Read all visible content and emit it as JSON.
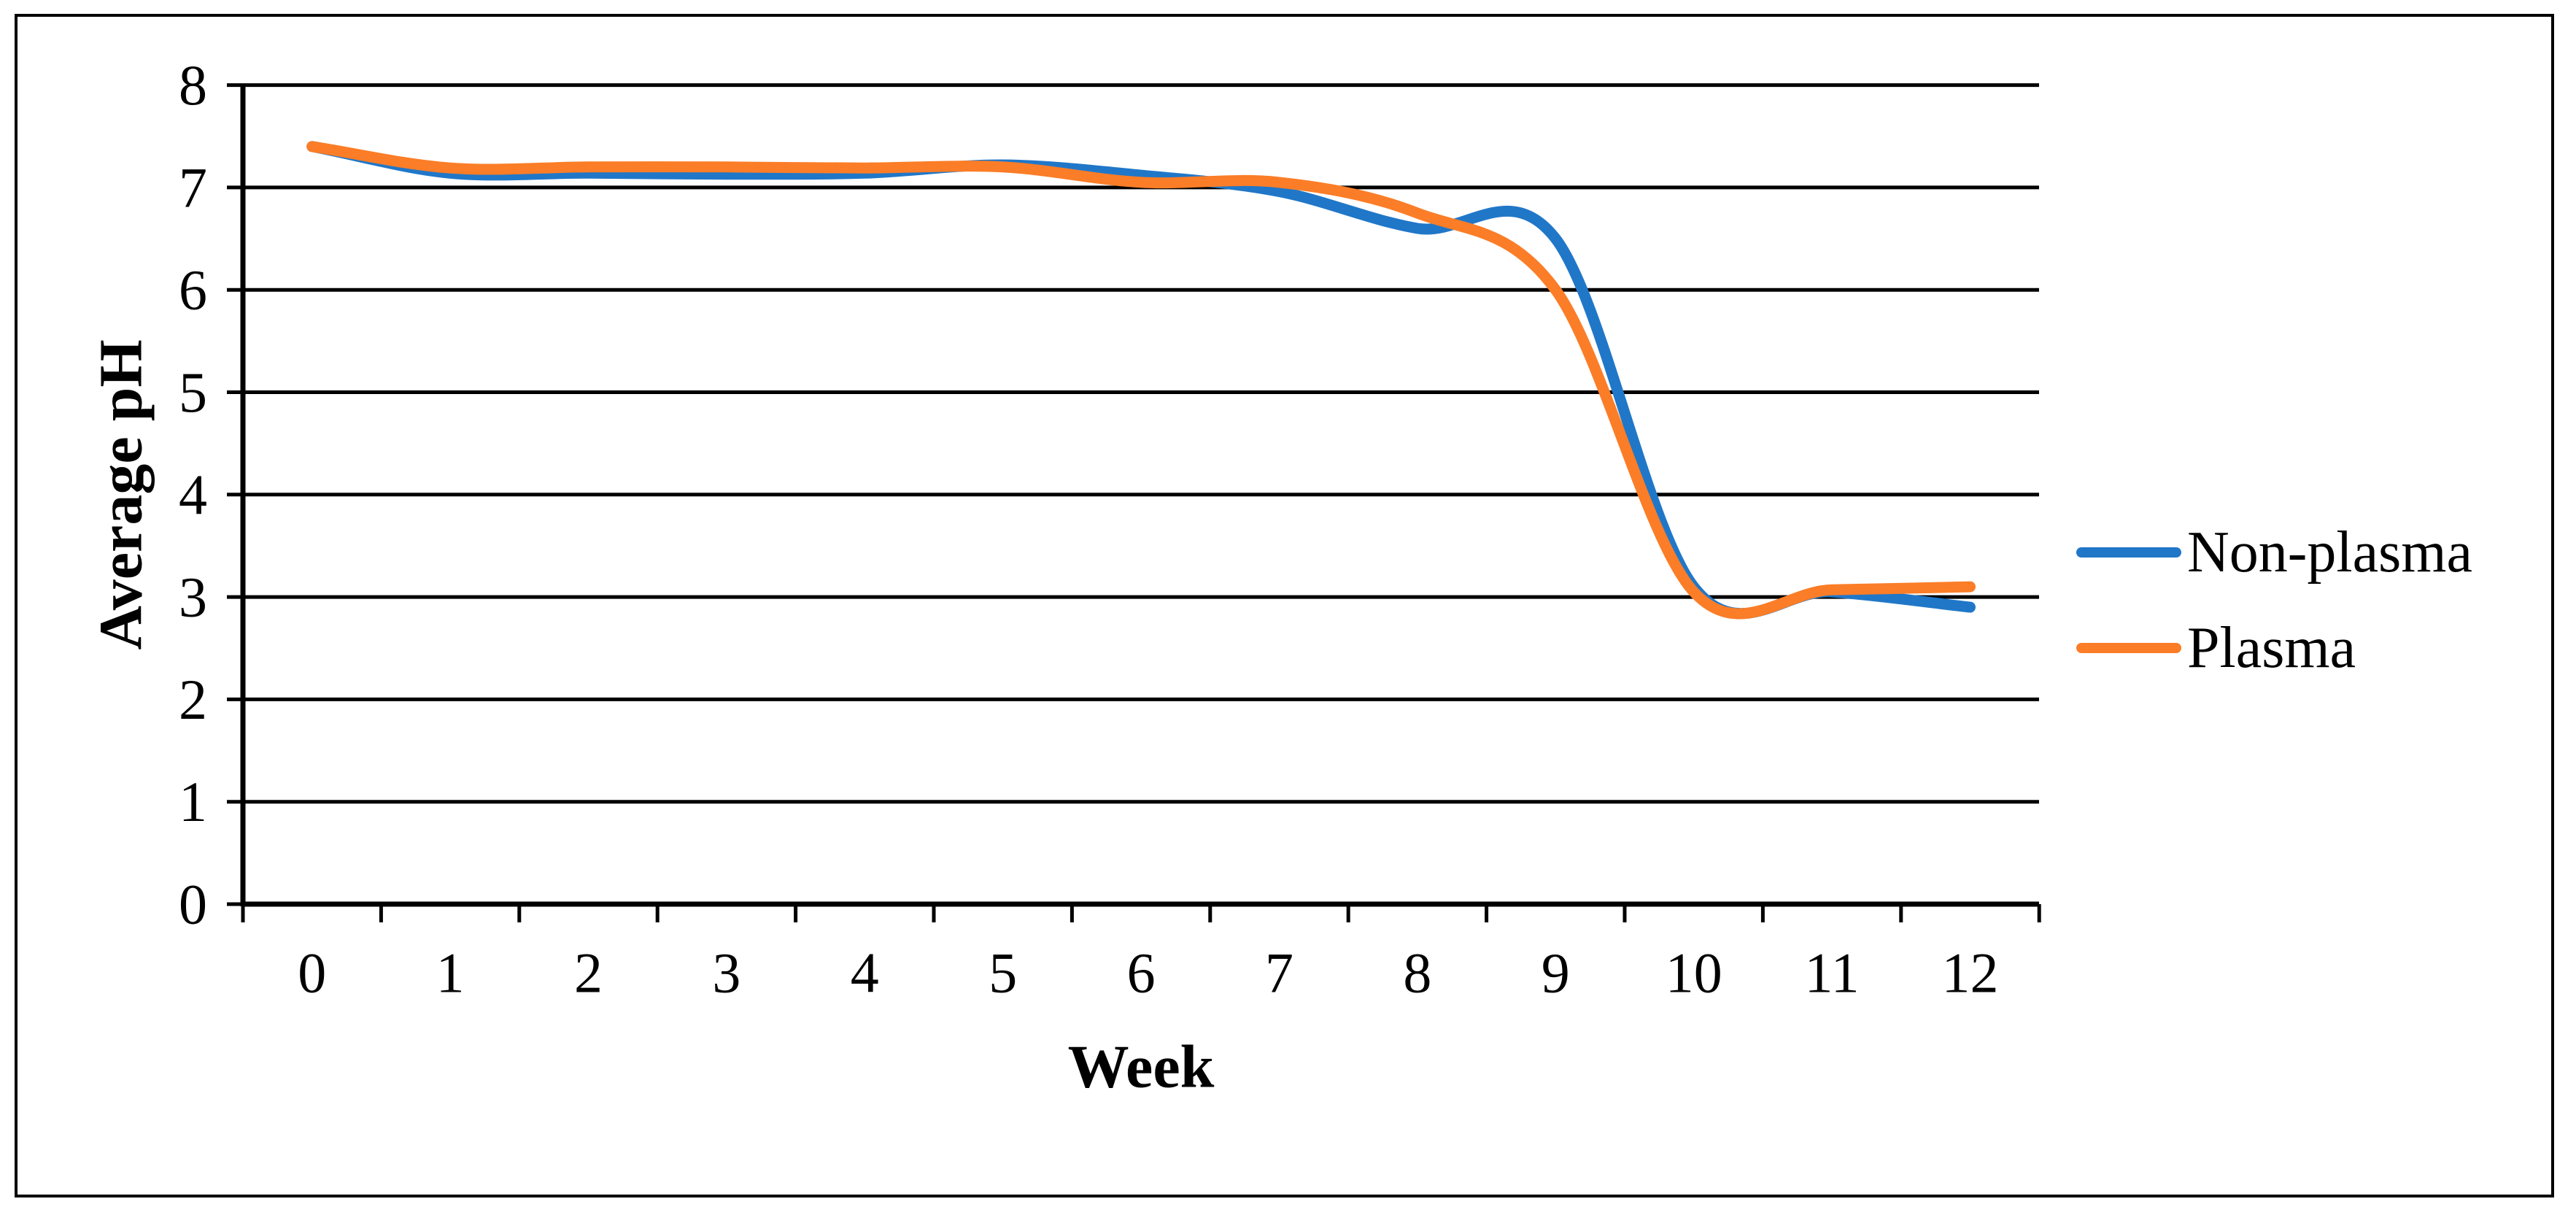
{
  "chart_data": {
    "type": "line",
    "title": "",
    "xlabel": "Week",
    "ylabel": "Average pH",
    "categories": [
      0,
      1,
      2,
      3,
      4,
      5,
      6,
      7,
      8,
      9,
      10,
      11,
      12
    ],
    "series": [
      {
        "name": "Non-plasma",
        "color": "#2077C8",
        "values": [
          7.4,
          7.14,
          7.14,
          7.13,
          7.14,
          7.22,
          7.12,
          6.96,
          6.6,
          6.5,
          3.1,
          3.05,
          2.9
        ]
      },
      {
        "name": "Plasma",
        "color": "#FB7D27",
        "values": [
          7.4,
          7.19,
          7.2,
          7.2,
          7.19,
          7.2,
          7.05,
          7.05,
          6.75,
          6.0,
          3.05,
          3.07,
          3.1
        ]
      }
    ],
    "ylim": [
      0,
      8
    ],
    "yticks": [
      0,
      1,
      2,
      3,
      4,
      5,
      6,
      7,
      8
    ],
    "xticks": [
      0,
      1,
      2,
      3,
      4,
      5,
      6,
      7,
      8,
      9,
      10,
      11,
      12
    ],
    "grid": "horizontal",
    "gridline_color": "#000000",
    "axis_color": "#000000",
    "text_color": "#000000",
    "legend_position": "right",
    "line_style": "smooth"
  }
}
